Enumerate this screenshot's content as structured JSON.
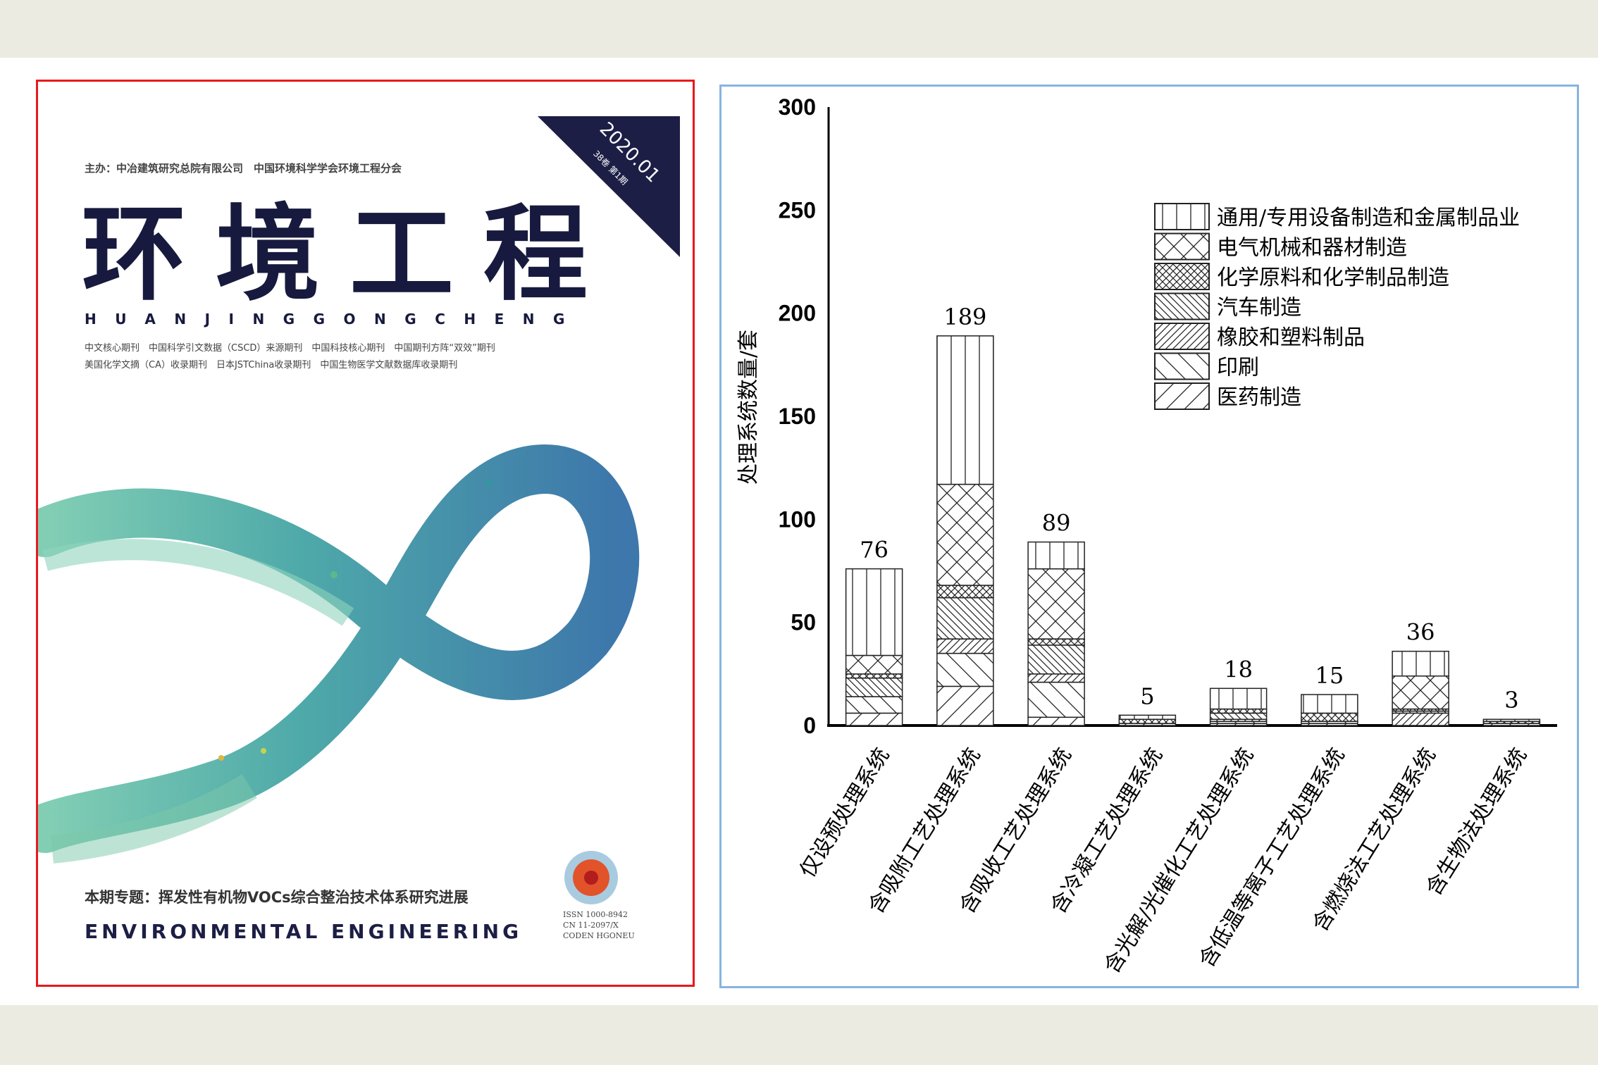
{
  "cover": {
    "sponsor": "主办：中冶建筑研究总院有限公司　中国环境科学学会环境工程分会",
    "title": "环境工程",
    "pinyin": "HUANJINGGONGCHENG",
    "index_line_1": "中文核心期刊　中国科学引文数据（CSCD）来源期刊　中国科技核心期刊　中国期刊方阵“双效”期刊",
    "index_line_2": "美国化学文摘（CA）收录期刊　日本JSTChina收录期刊　中国生物医学文献数据库收录期刊",
    "issue_date": "2020.01",
    "volume": "38卷 第1期",
    "topic": "本期专题：挥发性有机物VOCs综合整治技术体系研究进展",
    "english_title": "ENVIRONMENTAL ENGINEERING",
    "issn": "ISSN 1000-8942",
    "cn": "CN 11-2097/X",
    "coden": "CODEN HGONEU",
    "colors": {
      "title": "#171a3e",
      "border": "#e8191c",
      "swirl_green": "#3fae8c",
      "swirl_blue": "#1f6fa8"
    }
  },
  "chart_data": {
    "type": "bar",
    "stacked": true,
    "ylabel": "处理系统数量/套",
    "xlabel": "",
    "ylim": [
      0,
      300
    ],
    "yticks": [
      0,
      50,
      100,
      150,
      200,
      250,
      300
    ],
    "grid": false,
    "legend_position": "top-right",
    "categories": [
      "仅设预处理系统",
      "含吸附工艺处理系统",
      "含吸收工艺处理系统",
      "含冷凝工艺处理系统",
      "含光解/光催化工艺处理系统",
      "含低温等离子工艺处理系统",
      "含燃烧法工艺处理系统",
      "含生物法处理系统"
    ],
    "totals": [
      76,
      189,
      89,
      5,
      18,
      15,
      36,
      3
    ],
    "series": [
      {
        "name": "通用/专用设备制造和金属制品业",
        "pattern": "vertical-lines",
        "values": [
          42,
          72,
          13,
          2,
          10,
          9,
          12,
          1
        ]
      },
      {
        "name": "电气机械和器材制造",
        "pattern": "sparse-crosshatch",
        "values": [
          9,
          49,
          34,
          0,
          0,
          0,
          16,
          0
        ]
      },
      {
        "name": "化学原料和化学制品制造",
        "pattern": "dense-crosshatch",
        "values": [
          2,
          6,
          3,
          2,
          2,
          4,
          1,
          1
        ]
      },
      {
        "name": "汽车制造",
        "pattern": "dense-backslash",
        "values": [
          9,
          20,
          14,
          0,
          3,
          0,
          1,
          0
        ]
      },
      {
        "name": "橡胶和塑料制品",
        "pattern": "dense-slash",
        "values": [
          0,
          7,
          4,
          0,
          1,
          0,
          6,
          0
        ]
      },
      {
        "name": "印刷",
        "pattern": "sparse-backslash",
        "values": [
          8,
          16,
          17,
          0,
          1,
          1,
          0,
          0
        ]
      },
      {
        "name": "医药制造",
        "pattern": "sparse-slash",
        "values": [
          6,
          19,
          4,
          1,
          1,
          1,
          0,
          1
        ]
      }
    ]
  },
  "colors": {
    "page_band": "#ecebe1",
    "chart_border": "#87b4df"
  }
}
